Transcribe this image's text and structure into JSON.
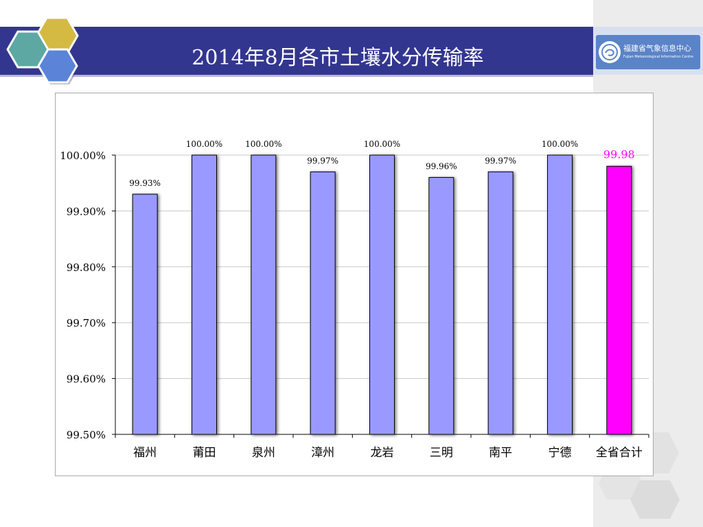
{
  "slide": {
    "title": "2014年8月各市土壤水分传输率"
  },
  "logo": {
    "name": "福建省气象信息中心",
    "subtitle": "Fujian Meteorological Information Centre"
  },
  "colors": {
    "title_band": "#33368f",
    "bar_default": "#9999ff",
    "bar_highlight": "#ff00ff",
    "label_highlight": "#ff00ff"
  },
  "chart_data": {
    "type": "bar",
    "categories": [
      "福州",
      "莆田",
      "泉州",
      "漳州",
      "龙岩",
      "三明",
      "南平",
      "宁德",
      "全省合计"
    ],
    "values": [
      99.93,
      100.0,
      100.0,
      99.97,
      100.0,
      99.96,
      99.97,
      100.0,
      99.98
    ],
    "data_labels": [
      "99.93%",
      "100.00%",
      "100.00%",
      "99.97%",
      "100.00%",
      "99.96%",
      "99.97%",
      "100.00%",
      "99.98"
    ],
    "highlight_index": 8,
    "ylim": [
      99.5,
      100.0
    ],
    "y_ticks": [
      99.5,
      99.6,
      99.7,
      99.8,
      99.9,
      100.0
    ],
    "y_tick_labels": [
      "99.50%",
      "99.60%",
      "99.70%",
      "99.80%",
      "99.90%",
      "100.00%"
    ],
    "grid": true,
    "legend": "none"
  }
}
